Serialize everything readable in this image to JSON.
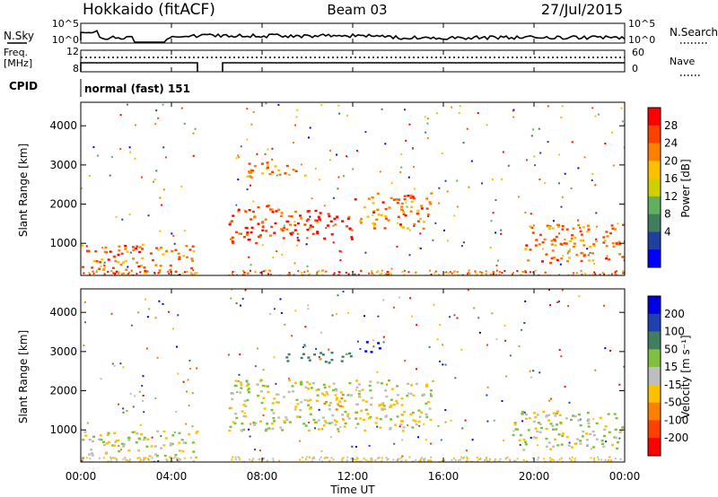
{
  "header": {
    "station": "Hokkaido (fitACF)",
    "beam": "Beam 03",
    "date": "27/Jul/2015"
  },
  "top_strip": {
    "noise_left_label": "N.Sky",
    "noise_right_label": "N.Search",
    "noise_ticks": [
      "10^5",
      "10^0"
    ],
    "freq_label_1": "Freq.",
    "freq_label_2": "[MHz]",
    "freq_ticks": [
      "12",
      "8"
    ],
    "nave_label": "Nave",
    "nave_ticks": [
      "60",
      "0"
    ],
    "cpid_label": "CPID",
    "cpid_text": "normal (fast) 151"
  },
  "power_colorbar": {
    "title": "Power [dB]",
    "labels": [
      "28",
      "24",
      "20",
      "16",
      "12",
      "8",
      "4"
    ],
    "colors": [
      "#ff0000",
      "#ff4000",
      "#ff8000",
      "#ffc000",
      "#d0d000",
      "#60b060",
      "#3f7f5f",
      "#2040a0",
      "#0000ff"
    ]
  },
  "velocity_colorbar": {
    "title": "Velocity [m s⁻¹]",
    "labels": [
      "200",
      "100",
      "50",
      "15",
      "-15",
      "-50",
      "-100",
      "-200"
    ],
    "colors": [
      "#0000e0",
      "#2040b0",
      "#3f7f5f",
      "#80c040",
      "#bebebe",
      "#ffc000",
      "#ff8000",
      "#ff4000",
      "#ff0000"
    ]
  },
  "x_axis": {
    "title": "Time UT",
    "ticks": [
      "00:00",
      "04:00",
      "08:00",
      "12:00",
      "16:00",
      "20:00",
      "00:00"
    ]
  },
  "chart_data": [
    {
      "type": "heatmap",
      "title": "Power",
      "ylabel": "Slant Range [km]",
      "xlabel": "Time UT",
      "x_range_hours": [
        0,
        24
      ],
      "ylim": [
        180,
        4600
      ],
      "y_ticks": [
        1000,
        2000,
        3000,
        4000
      ],
      "data_gaps_hours": [
        [
          5.1,
          6.4
        ]
      ],
      "regions": [
        {
          "t0": 0.0,
          "t1": 5.1,
          "r0": 300,
          "r1": 1000,
          "value_dB": 24
        },
        {
          "t0": 6.5,
          "t1": 9.0,
          "r0": 1000,
          "r1": 2000,
          "value_dB": 26
        },
        {
          "t0": 9.0,
          "t1": 12.0,
          "r0": 1100,
          "r1": 1900,
          "value_dB": 28
        },
        {
          "t0": 12.0,
          "t1": 15.5,
          "r0": 1400,
          "r1": 2300,
          "value_dB": 24
        },
        {
          "t0": 7.0,
          "t1": 10.0,
          "r0": 2700,
          "r1": 3100,
          "value_dB": 22
        },
        {
          "t0": 19.5,
          "t1": 24.0,
          "r0": 500,
          "r1": 1500,
          "value_dB": 24
        }
      ]
    },
    {
      "type": "heatmap",
      "title": "Velocity",
      "ylabel": "Slant Range [km]",
      "xlabel": "Time UT",
      "x_range_hours": [
        0,
        24
      ],
      "ylim": [
        180,
        4600
      ],
      "y_ticks": [
        1000,
        2000,
        3000,
        4000
      ],
      "data_gaps_hours": [
        [
          5.1,
          6.4
        ]
      ],
      "regions": [
        {
          "t0": 0.0,
          "t1": 5.1,
          "r0": 300,
          "r1": 1000,
          "value_ms": 0
        },
        {
          "t0": 6.5,
          "t1": 15.5,
          "r0": 1000,
          "r1": 2300,
          "value_ms": 0
        },
        {
          "t0": 10.5,
          "t1": 11.5,
          "r0": 1500,
          "r1": 2000,
          "value_ms": -30
        },
        {
          "t0": 12.5,
          "t1": 13.2,
          "r0": 3000,
          "r1": 3300,
          "value_ms": 220
        },
        {
          "t0": 9.0,
          "t1": 12.0,
          "r0": 2700,
          "r1": 3000,
          "value_ms": 40
        },
        {
          "t0": 19.0,
          "t1": 24.0,
          "r0": 500,
          "r1": 1500,
          "value_ms": 0
        }
      ]
    }
  ]
}
